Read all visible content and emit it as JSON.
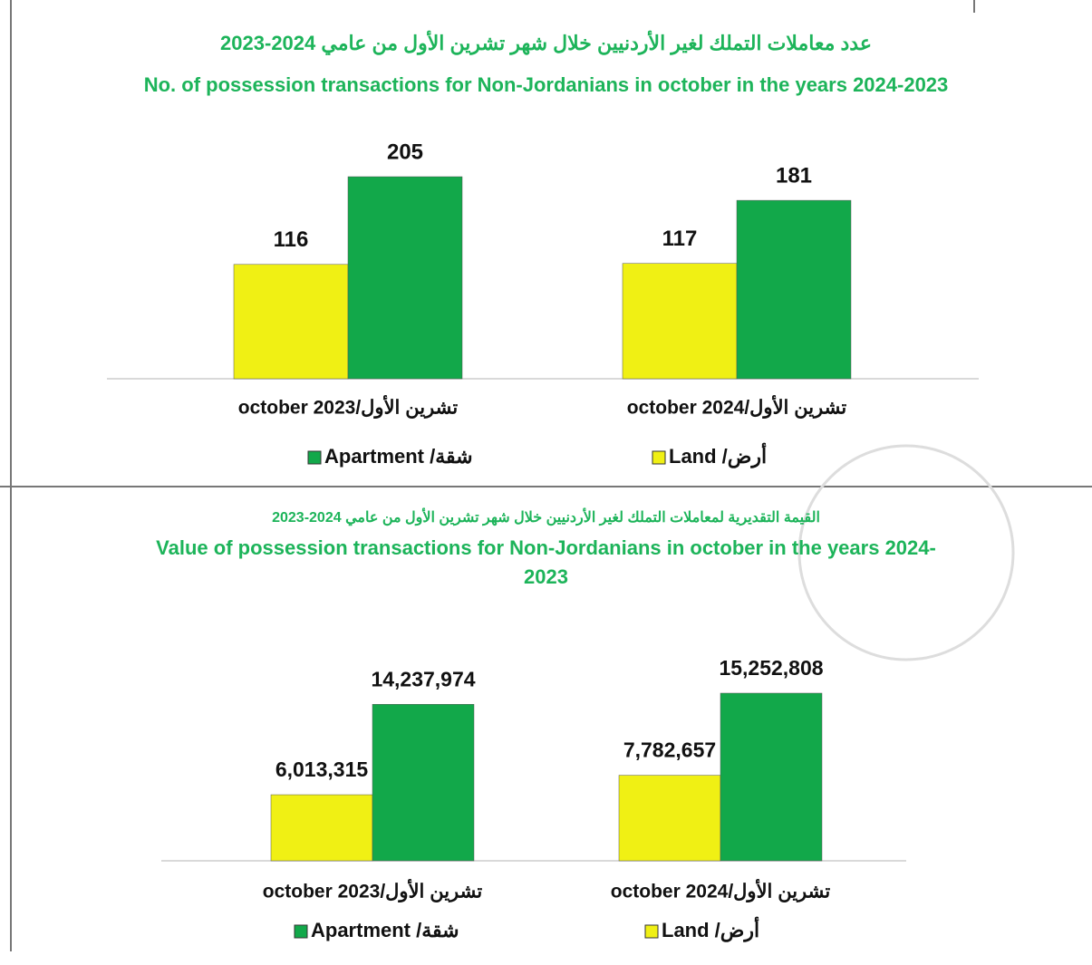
{
  "chart_data": [
    {
      "type": "bar",
      "title": "عدد معاملات التملك لغير الأردنيين خلال شهر تشرين الأول من عامي 2024-2023",
      "subtitle": "No. of possession transactions for Non-Jordanians in october in the years 2024-2023",
      "categories": [
        "october 2023/تشرين الأول",
        "october 2024/تشرين الأول"
      ],
      "series": [
        {
          "name": "Land /أرض",
          "color": "#f0f014",
          "values": [
            116,
            117
          ]
        },
        {
          "name": "Apartment /شقة",
          "color": "#12a84a",
          "values": [
            205,
            181
          ]
        }
      ]
    },
    {
      "type": "bar",
      "title": "القيمة التقديرية لمعاملات التملك لغير الأردنيين خلال شهر تشرين الأول من عامي 2024-2023",
      "subtitle": "Value of possession transactions for Non-Jordanians in october in the years 2024-2023",
      "categories": [
        "october 2023/تشرين الأول",
        "october 2024/تشرين الأول"
      ],
      "series": [
        {
          "name": "Land /أرض",
          "color": "#f0f014",
          "values": [
            6013315,
            7782657
          ],
          "value_labels": [
            "6,013,315",
            "7,782,657"
          ]
        },
        {
          "name": "Apartment /شقة",
          "color": "#12a84a",
          "values": [
            14237974,
            15252808
          ],
          "value_labels": [
            "14,237,974",
            "15,252,808"
          ]
        }
      ]
    }
  ]
}
